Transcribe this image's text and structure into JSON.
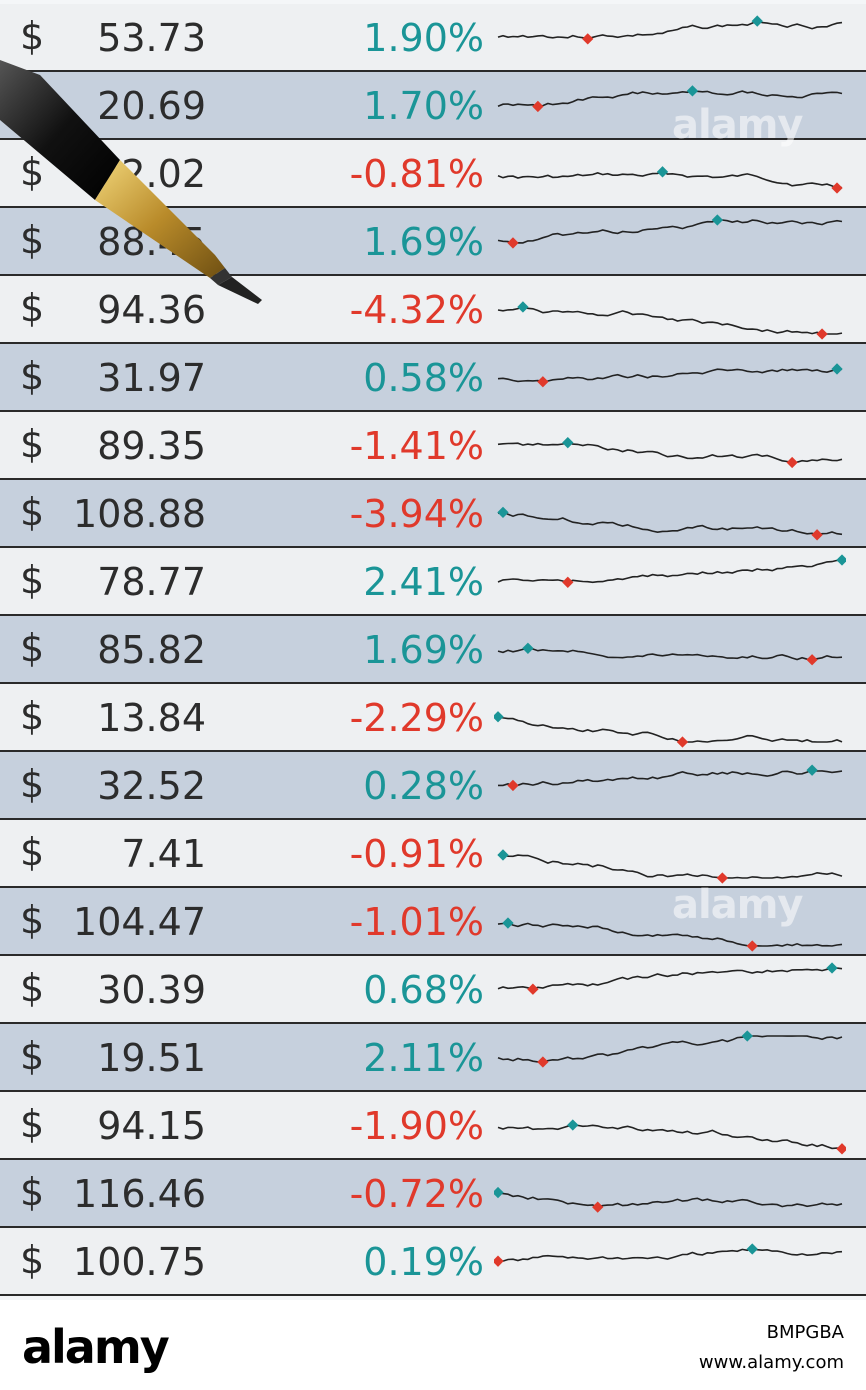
{
  "rows": [
    {
      "price": "53.73",
      "pct": "1.90%",
      "dir": "up"
    },
    {
      "price": "20.69",
      "pct": "1.70%",
      "dir": "up"
    },
    {
      "price": "72.02",
      "pct": "-0.81%",
      "dir": "down"
    },
    {
      "price": "88.45",
      "pct": "1.69%",
      "dir": "up"
    },
    {
      "price": "94.36",
      "pct": "-4.32%",
      "dir": "down"
    },
    {
      "price": "31.97",
      "pct": "0.58%",
      "dir": "up"
    },
    {
      "price": "89.35",
      "pct": "-1.41%",
      "dir": "down"
    },
    {
      "price": "108.88",
      "pct": "-3.94%",
      "dir": "down"
    },
    {
      "price": "78.77",
      "pct": "2.41%",
      "dir": "up"
    },
    {
      "price": "85.82",
      "pct": "1.69%",
      "dir": "up"
    },
    {
      "price": "13.84",
      "pct": "-2.29%",
      "dir": "down"
    },
    {
      "price": "32.52",
      "pct": "0.28%",
      "dir": "up"
    },
    {
      "price": "7.41",
      "pct": "-0.91%",
      "dir": "down"
    },
    {
      "price": "104.47",
      "pct": "-1.01%",
      "dir": "down"
    },
    {
      "price": "30.39",
      "pct": "0.68%",
      "dir": "up"
    },
    {
      "price": "19.51",
      "pct": "2.11%",
      "dir": "up"
    },
    {
      "price": "94.15",
      "pct": "-1.90%",
      "dir": "down"
    },
    {
      "price": "116.46",
      "pct": "-0.72%",
      "dir": "down"
    },
    {
      "price": "100.75",
      "pct": "0.19%",
      "dir": "up"
    }
  ],
  "currency_symbol": "$",
  "colors": {
    "up": "#1a9597",
    "down": "#e0392b",
    "high_marker": "#1a9597",
    "low_marker": "#e0392b"
  },
  "watermark": "alamy",
  "footer": {
    "logo": "alamy",
    "image_id": "BMPGBA",
    "site": "www.alamy.com"
  },
  "objects": [
    "mechanical-pencil"
  ]
}
